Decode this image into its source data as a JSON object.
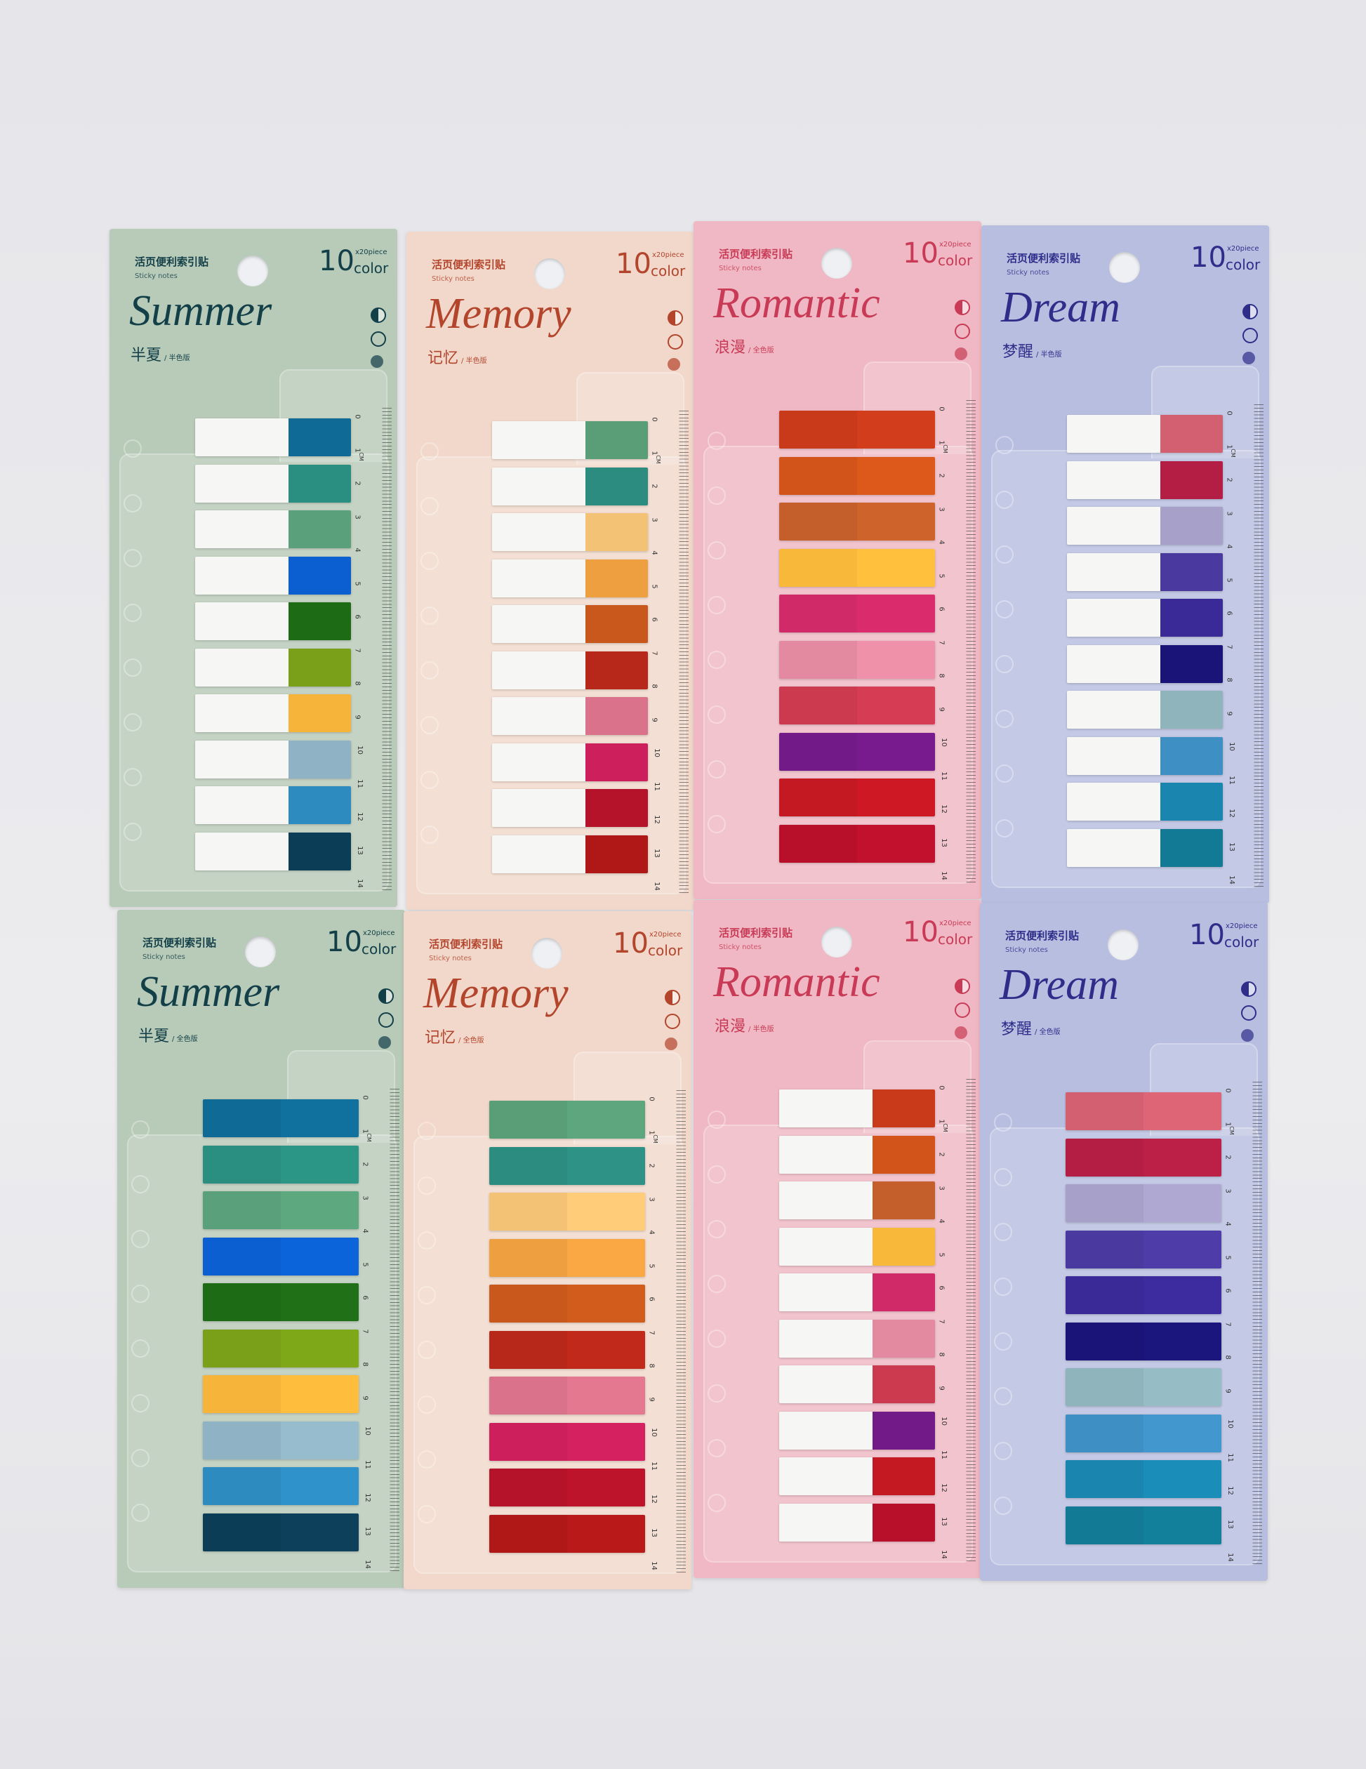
{
  "ruler": {
    "labels": [
      "0",
      "1",
      "2",
      "3",
      "4",
      "5",
      "6",
      "7",
      "8",
      "9",
      "10",
      "11",
      "12",
      "13",
      "14"
    ],
    "unit": "CM"
  },
  "cards": [
    {
      "cn": "活页便利索引贴",
      "en": "Sticky notes",
      "count": "10",
      "pieces": "x20piece",
      "color_label": "color",
      "title": "Summer",
      "name": "半夏",
      "version": "/ 半色版",
      "style": "half",
      "bg": "#b8cab8",
      "ink": "#123f48",
      "colors": [
        "#0f6b96",
        "#2a8f80",
        "#5aa07a",
        "#0b5fd0",
        "#1e6b16",
        "#79a018",
        "#f6b43a",
        "#8fb3c4",
        "#2e8bc0",
        "#0b3d57"
      ]
    },
    {
      "cn": "活页便利索引贴",
      "en": "Sticky notes",
      "count": "10",
      "pieces": "x20piece",
      "color_label": "color",
      "title": "Memory",
      "name": "记忆",
      "version": "/ 半色版",
      "style": "half",
      "bg": "#f1d8ca",
      "ink": "#b3452d",
      "colors": [
        "#5a9e78",
        "#2c8c80",
        "#f4c274",
        "#eea041",
        "#c8581b",
        "#b8281a",
        "#d9728a",
        "#cc1f5c",
        "#b4132a",
        "#b01818"
      ]
    },
    {
      "cn": "活页便利索引贴",
      "en": "Sticky notes",
      "count": "10",
      "pieces": "x20piece",
      "color_label": "color",
      "title": "Romantic",
      "name": "浪漫",
      "version": "/ 全色版",
      "style": "full",
      "bg": "#f0b8c4",
      "ink": "#c83a55",
      "colors": [
        "#c83a1a",
        "#d2541a",
        "#c45e2a",
        "#f8b83a",
        "#d02a68",
        "#e48aa0",
        "#cc3a50",
        "#721a88",
        "#c41822",
        "#b8102a"
      ]
    },
    {
      "cn": "活页便利索引贴",
      "en": "Sticky notes",
      "count": "10",
      "pieces": "x20piece",
      "color_label": "color",
      "title": "Dream",
      "name": "梦醒",
      "version": "/ 半色版",
      "style": "half",
      "bg": "#b8bee0",
      "ink": "#2e2e8a",
      "colors": [
        "#d26070",
        "#b41e44",
        "#a7a0c8",
        "#4a3aa0",
        "#3a2a98",
        "#1a1478",
        "#8fb4bc",
        "#3e90c4",
        "#1a86b0",
        "#127a94"
      ]
    },
    {
      "cn": "活页便利索引贴",
      "en": "Sticky notes",
      "count": "10",
      "pieces": "x20piece",
      "color_label": "color",
      "title": "Summer",
      "name": "半夏",
      "version": "/ 全色版",
      "style": "full",
      "bg": "#b8cab8",
      "ink": "#123f48",
      "colors": [
        "#0f6b96",
        "#2a8f80",
        "#5aa07a",
        "#0b5fd0",
        "#1e6b16",
        "#79a018",
        "#f6b43a",
        "#8fb3c4",
        "#2e8bc0",
        "#0b3d57"
      ]
    },
    {
      "cn": "活页便利索引贴",
      "en": "Sticky notes",
      "count": "10",
      "pieces": "x20piece",
      "color_label": "color",
      "title": "Memory",
      "name": "记忆",
      "version": "/ 全色版",
      "style": "full",
      "bg": "#f1d8ca",
      "ink": "#b3452d",
      "colors": [
        "#5a9e78",
        "#2c8c80",
        "#f4c274",
        "#eea041",
        "#c8581b",
        "#b8281a",
        "#d9728a",
        "#cc1f5c",
        "#b4132a",
        "#b01818"
      ]
    },
    {
      "cn": "活页便利索引贴",
      "en": "Sticky notes",
      "count": "10",
      "pieces": "x20piece",
      "color_label": "color",
      "title": "Romantic",
      "name": "浪漫",
      "version": "/ 半色版",
      "style": "half",
      "bg": "#f0b8c4",
      "ink": "#c83a55",
      "colors": [
        "#c83a1a",
        "#d2541a",
        "#c45e2a",
        "#f8b83a",
        "#d02a68",
        "#e48aa0",
        "#cc3a50",
        "#721a88",
        "#c41822",
        "#b8102a"
      ]
    },
    {
      "cn": "活页便利索引贴",
      "en": "Sticky notes",
      "count": "10",
      "pieces": "x20piece",
      "color_label": "color",
      "title": "Dream",
      "name": "梦醒",
      "version": "/ 全色版",
      "style": "full",
      "bg": "#b8bee0",
      "ink": "#2e2e8a",
      "colors": [
        "#d26070",
        "#b41e44",
        "#a7a0c8",
        "#4a3aa0",
        "#3a2a98",
        "#1a1478",
        "#8fb4bc",
        "#3e90c4",
        "#1a86b0",
        "#127a94"
      ]
    }
  ]
}
